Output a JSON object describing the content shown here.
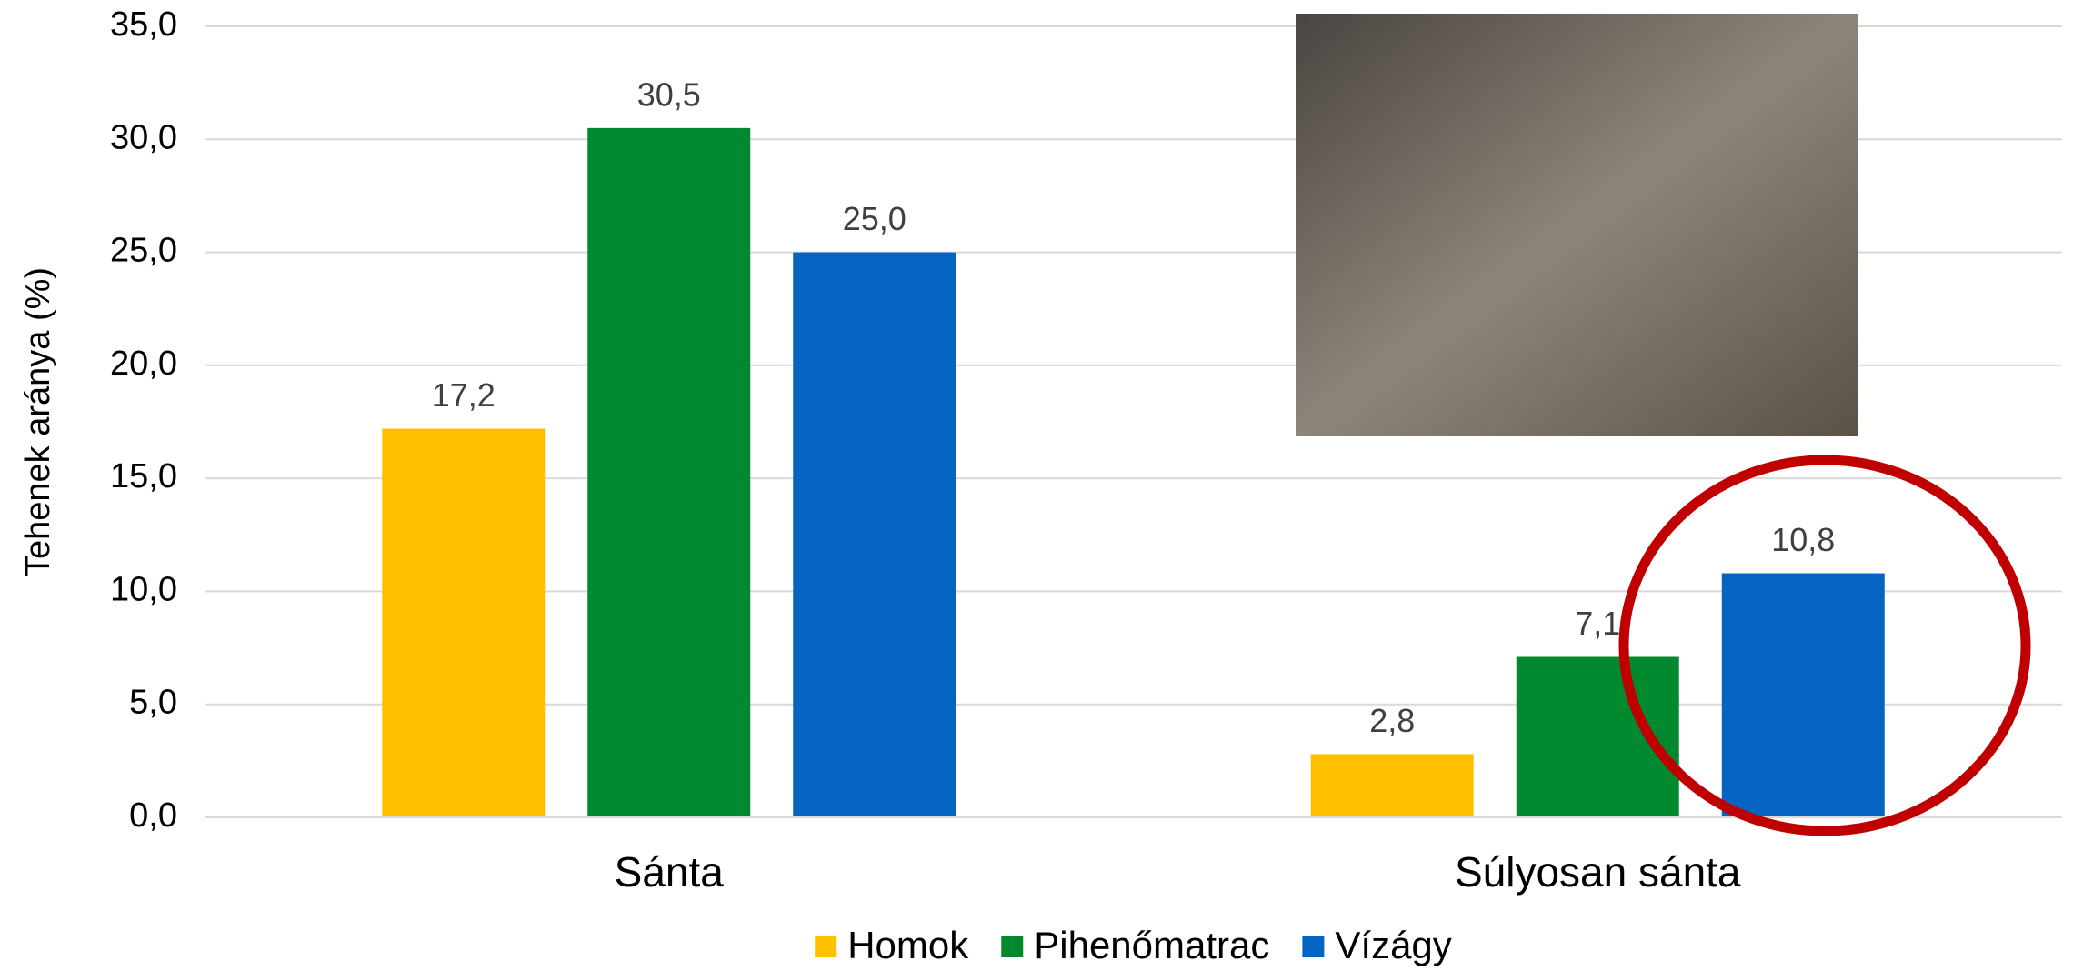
{
  "chart_data": {
    "type": "bar",
    "y_label": "Tehenek aránya (%)",
    "categories": [
      "Sánta",
      "Súlyosan sánta"
    ],
    "series": [
      {
        "name": "Homok",
        "color": "#ffc000",
        "values": [
          17.2,
          2.8
        ],
        "value_labels": [
          "17,2",
          "2,8"
        ]
      },
      {
        "name": "Pihenőmatrac",
        "color": "#00892f",
        "values": [
          30.5,
          7.1
        ],
        "value_labels": [
          "30,5",
          "7,1"
        ]
      },
      {
        "name": "Vízágy",
        "color": "#0563c1",
        "values": [
          25.0,
          10.8
        ],
        "value_labels": [
          "25,0",
          "10,8"
        ]
      }
    ],
    "ylim": [
      0,
      35
    ],
    "yticks": [
      {
        "value": 0,
        "label": "0,0"
      },
      {
        "value": 5,
        "label": "5,0"
      },
      {
        "value": 10,
        "label": "10,0"
      },
      {
        "value": 15,
        "label": "15,0"
      },
      {
        "value": 20,
        "label": "20,0"
      },
      {
        "value": 25,
        "label": "25,0"
      },
      {
        "value": 30,
        "label": "30,0"
      },
      {
        "value": 35,
        "label": "35,0"
      }
    ],
    "grid": true,
    "legend": "bottom"
  }
}
